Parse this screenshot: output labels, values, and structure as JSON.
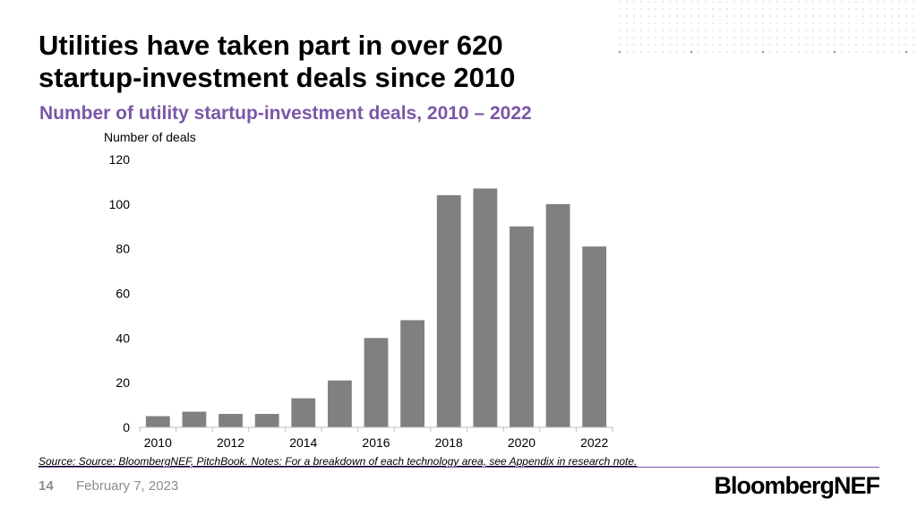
{
  "slide": {
    "title_line1": "Utilities have taken part in over 620",
    "title_line2": "startup-investment deals since 2010",
    "subtitle": "Number of utility startup-investment deals, 2010 – 2022",
    "source": "Source: Source: BloombergNEF, PitchBook. Notes: For a breakdown of each technology area, see Appendix in research note.",
    "page_number": "14",
    "date": "February 7, 2023",
    "logo": "BloombergNEF"
  },
  "colors": {
    "bar": "#808080",
    "subtitle": "#7b57a6",
    "axis": "#bfbfbf"
  },
  "chart_data": {
    "type": "bar",
    "ylabel": "Number of deals",
    "categories": [
      "2010",
      "2011",
      "2012",
      "2013",
      "2014",
      "2015",
      "2016",
      "2017",
      "2018",
      "2019",
      "2020",
      "2021",
      "2022"
    ],
    "values": [
      5,
      7,
      6,
      6,
      13,
      21,
      40,
      48,
      104,
      107,
      90,
      100,
      81
    ],
    "x_tick_labels": [
      "2010",
      "2012",
      "2014",
      "2016",
      "2018",
      "2020",
      "2022"
    ],
    "y_ticks": [
      0,
      20,
      40,
      60,
      80,
      100,
      120
    ],
    "ylim": [
      0,
      120
    ],
    "grid": false,
    "legend": "none"
  }
}
